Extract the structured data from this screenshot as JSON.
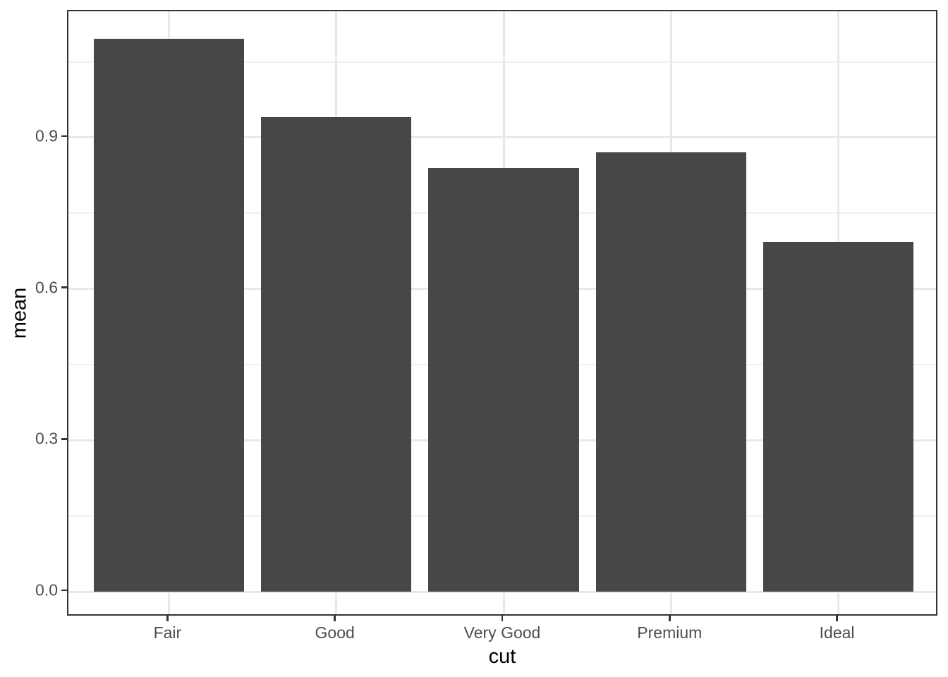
{
  "chart_data": {
    "type": "bar",
    "title": "",
    "categories": [
      "Fair",
      "Good",
      "Very Good",
      "Premium",
      "Ideal"
    ],
    "values": [
      1.095,
      0.94,
      0.84,
      0.87,
      0.693
    ],
    "xlabel": "cut",
    "ylabel": "mean",
    "y_ticks": [
      {
        "value": 0.0,
        "label": "0.0"
      },
      {
        "value": 0.3,
        "label": "0.3"
      },
      {
        "value": 0.6,
        "label": "0.6"
      },
      {
        "value": 0.9,
        "label": "0.9"
      }
    ],
    "y_minor_ticks": [
      0.15,
      0.45,
      0.75,
      1.05
    ],
    "ylim": [
      -0.05,
      1.15
    ],
    "x_expand": {
      "lower": 0.6,
      "upper": 0.6
    },
    "bar_rel_width": 0.9,
    "grid": true,
    "legend": "none",
    "colors": {
      "bar_fill": "#474747",
      "grid_major": "#e8e8e8",
      "grid_minor": "#f0f0f0",
      "panel_border": "#333333",
      "tick_mark": "#333333",
      "axis_text": "#4d4d4d",
      "axis_title": "#000000",
      "background": "#ffffff"
    }
  }
}
